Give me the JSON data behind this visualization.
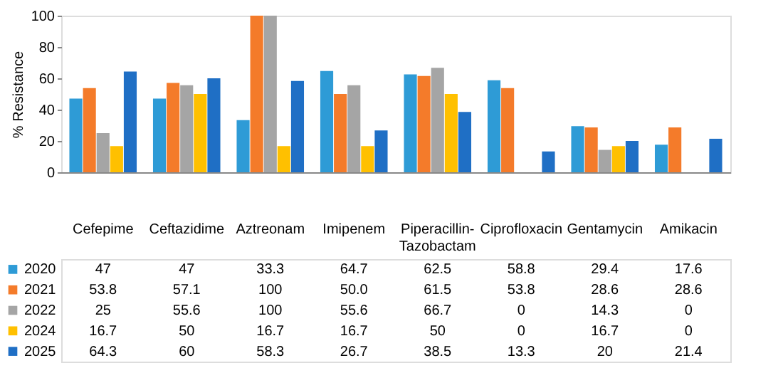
{
  "chart_data": {
    "type": "bar",
    "ylabel": "% Resistance",
    "categories": [
      "Cefepime",
      "Ceftazidime",
      "Aztreonam",
      "Imipenem",
      "Piperacillin-Tazobactam",
      "Ciprofloxacin",
      "Gentamycin",
      "Amikacin"
    ],
    "series": [
      {
        "name": "2020",
        "color": "#2e9bd6",
        "values": [
          47,
          47,
          33.3,
          64.7,
          62.5,
          58.8,
          29.4,
          17.6
        ],
        "value_labels": [
          "47",
          "47",
          "33.3",
          "64.7",
          "62.5",
          "58.8",
          "29.4",
          "17.6"
        ]
      },
      {
        "name": "2021",
        "color": "#f47b2a",
        "values": [
          53.8,
          57.1,
          100,
          50.0,
          61.5,
          53.8,
          28.6,
          28.6
        ],
        "value_labels": [
          "53.8",
          "57.1",
          "100",
          "50.0",
          "61.5",
          "53.8",
          "28.6",
          "28.6"
        ]
      },
      {
        "name": "2022",
        "color": "#a5a5a5",
        "values": [
          25,
          55.6,
          100,
          55.6,
          66.7,
          0,
          14.3,
          0
        ],
        "value_labels": [
          "25",
          "55.6",
          "100",
          "55.6",
          "66.7",
          "0",
          "14.3",
          "0"
        ]
      },
      {
        "name": "2024",
        "color": "#ffc000",
        "values": [
          16.7,
          50,
          16.7,
          16.7,
          50,
          0,
          16.7,
          0
        ],
        "value_labels": [
          "16.7",
          "50",
          "16.7",
          "16.7",
          "50",
          "0",
          "16.7",
          "0"
        ]
      },
      {
        "name": "2025",
        "color": "#1f6fc5",
        "values": [
          64.3,
          60,
          58.3,
          26.7,
          38.5,
          13.3,
          20,
          21.4
        ],
        "value_labels": [
          "64.3",
          "60",
          "58.3",
          "26.7",
          "38.5",
          "13.3",
          "20",
          "21.4"
        ]
      }
    ],
    "ylim": [
      0,
      100
    ],
    "yticks": [
      0,
      20,
      40,
      60,
      80,
      100
    ],
    "grid": false,
    "legend": "bottom left"
  }
}
